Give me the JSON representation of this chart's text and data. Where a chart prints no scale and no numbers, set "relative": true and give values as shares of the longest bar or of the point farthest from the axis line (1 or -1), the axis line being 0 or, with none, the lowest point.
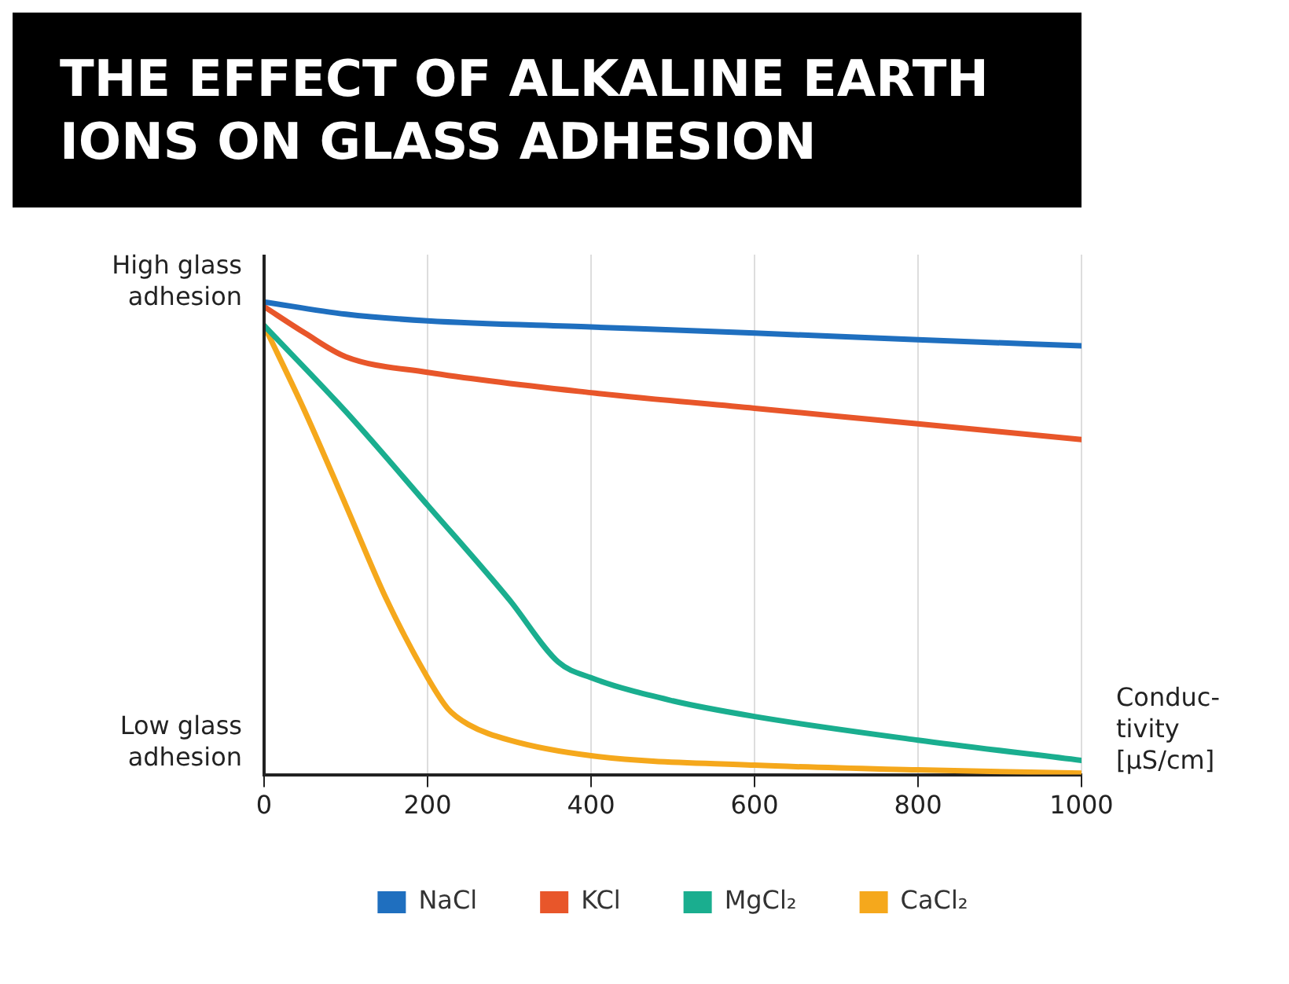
{
  "chart_data": {
    "type": "line",
    "title": "THE EFFECT OF ALKALINE EARTH IONS ON GLASS ADHESION",
    "xlabel": "Conduc-\ntivity\n[µS/cm]",
    "annotations": [
      "High glass\nadhesion",
      "Low glass\nadhesion"
    ],
    "relative": true,
    "xlim": [
      0,
      1000
    ],
    "xticks": [
      0,
      200,
      400,
      600,
      800,
      1000
    ],
    "grid": "x",
    "legend": "bottom",
    "marker": "none",
    "line_style": "solid",
    "series": [
      {
        "name": "NaCl",
        "color": "#1f6fbf",
        "x": [
          0,
          100,
          200,
          400,
          600,
          800,
          1000
        ],
        "values": [
          1.0,
          0.974,
          0.96,
          0.947,
          0.934,
          0.92,
          0.907
        ]
      },
      {
        "name": "KCl",
        "color": "#e8562a",
        "x": [
          0,
          50,
          100,
          200,
          400,
          600,
          800,
          1000
        ],
        "values": [
          0.99,
          0.934,
          0.884,
          0.851,
          0.808,
          0.775,
          0.742,
          0.709
        ]
      },
      {
        "name": "MgCl₂",
        "color": "#1aae8f",
        "x": [
          0,
          100,
          200,
          300,
          360,
          400,
          500,
          600,
          800,
          1000
        ],
        "values": [
          0.95,
          0.768,
          0.57,
          0.37,
          0.238,
          0.205,
          0.156,
          0.123,
          0.073,
          0.03
        ]
      },
      {
        "name": "CaCl₂",
        "color": "#f5a81c",
        "x": [
          0,
          50,
          100,
          150,
          200,
          225,
          250,
          300,
          400,
          600,
          800,
          1000
        ],
        "values": [
          0.95,
          0.768,
          0.57,
          0.37,
          0.205,
          0.139,
          0.106,
          0.073,
          0.04,
          0.02,
          0.01,
          0.003
        ]
      }
    ]
  }
}
